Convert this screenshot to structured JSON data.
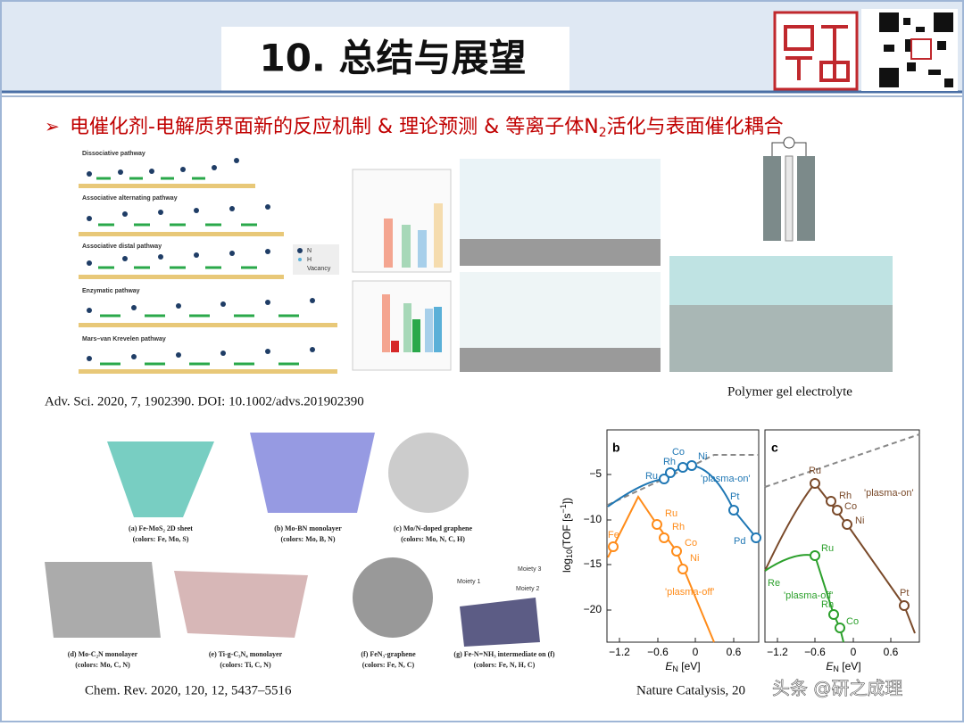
{
  "header": {
    "title": "10. 总结与展望"
  },
  "bullet": {
    "text": "电催化剂-电解质界面新的反应机制 & 理论预测 & 等离子体N",
    "subscript": "2",
    "text_end": "活化与表面催化耦合"
  },
  "figure_pathways": {
    "pathways": [
      "Dissociative pathway",
      "Associative alternating pathway",
      "Associative distal pathway",
      "Enzymatic pathway",
      "Mars–van Krevelen pathway"
    ],
    "legend": [
      "N",
      "H",
      "Vacancy"
    ]
  },
  "citation_top": "Adv. Sci. 2020, 7, 1902390. DOI: 10.1002/advs.201902390",
  "caption_right": "Polymer gel electrolyte",
  "molecules": [
    {
      "label": "(a) Fe-MoS₂ 2D sheet",
      "colors": "(colors: Fe, Mo, S)"
    },
    {
      "label": "(b) Mo-BN monolayer",
      "colors": "(colors: Mo, B, N)"
    },
    {
      "label": "(c) Mo/N-doped graphene",
      "colors": "(colors: Mo, N, C, H)"
    },
    {
      "label": "(d) Mo-C₂N monolayer",
      "colors": "(colors: Mo, C, N)"
    },
    {
      "label": "(e) Ti-g-C₃N₄ monolayer",
      "colors": "(colors: Ti, C, N)"
    },
    {
      "label": "(f) FeN₃-graphene",
      "colors": "(colors: Fe, N, C)"
    },
    {
      "label": "(g) Fe-N=NH₃ intermediate on (f)",
      "colors": "(colors: Fe, N, H, C)"
    }
  ],
  "moiety": [
    "Moiety 1",
    "Moiety 2",
    "Moiety 3"
  ],
  "citation_bottom": "Chem. Rev. 2020, 120, 12, 5437–5516",
  "volcano": {
    "y_label": [
      "log",
      "10",
      "(TOF [s",
      "−1",
      "])"
    ],
    "x_label": [
      "E",
      "N",
      " [eV]"
    ],
    "yticks": [
      "−5",
      "−10",
      "−15",
      "−20"
    ],
    "xticks": [
      "−1.2",
      "−0.6",
      "0",
      "0.6"
    ],
    "panels": [
      {
        "label": "b",
        "on": [
          "Ru",
          "Rh",
          "Co",
          "Ni",
          "Pt",
          "Pd",
          "'plasma-on'"
        ],
        "off": [
          "Fe",
          "Ru",
          "Rh",
          "Co",
          "Ni",
          "'plasma-off'"
        ]
      },
      {
        "label": "c",
        "on": [
          "Ru",
          "Rh",
          "Co",
          "Ni",
          "Pt",
          "'plasma-on'"
        ],
        "off": [
          "Re",
          "Ru",
          "Rh",
          "Co",
          "'plasma-off'"
        ]
      }
    ]
  },
  "citation_nature": "Nature Catalysis, 20",
  "watermark": "头条 @研之成理"
}
